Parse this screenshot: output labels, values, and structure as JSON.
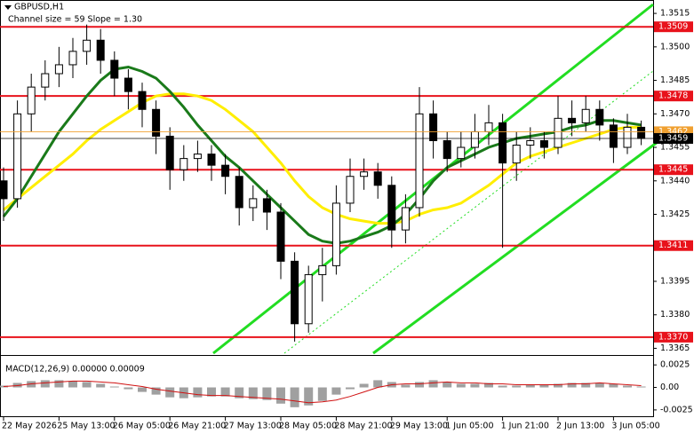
{
  "chart_data": [
    {
      "type": "candlestick",
      "title": "GBPUSD,H1",
      "subtitle": "Channel size = 59 Slope = 1.30",
      "categories": [
        "22 May 2026",
        null,
        null,
        null,
        "25 May 13:00",
        null,
        null,
        null,
        "26 May 05:00",
        null,
        null,
        null,
        "26 May 21:00",
        null,
        null,
        null,
        "27 May 13:00",
        null,
        null,
        null,
        "28 May 05:00",
        null,
        null,
        null,
        "28 May 21:00",
        null,
        null,
        null,
        "29 May 13:00",
        null,
        null,
        null,
        "1 Jun 05:00",
        null,
        null,
        null,
        "1 Jun 21:00",
        null,
        null,
        null,
        "2 Jun 13:00",
        null,
        null,
        null,
        "3 Jun 05:00",
        null,
        null
      ],
      "open": [
        1.344,
        1.3432,
        1.347,
        1.3482,
        1.3488,
        1.3492,
        1.3498,
        1.3503,
        1.3494,
        1.3486,
        1.348,
        1.3472,
        1.346,
        1.3445,
        1.345,
        1.3452,
        1.3447,
        1.3442,
        1.3428,
        1.3432,
        1.3426,
        1.3404,
        1.3376,
        1.3398,
        1.3402,
        1.343,
        1.3442,
        1.3444,
        1.3438,
        1.3418,
        1.3428,
        1.347,
        1.3458,
        1.345,
        1.3455,
        1.3462,
        1.3466,
        1.3448,
        1.3456,
        1.3458,
        1.3455,
        1.3468,
        1.3466,
        1.3472,
        1.3465,
        1.3455,
        1.3464
      ],
      "high": [
        1.3446,
        1.3476,
        1.3488,
        1.3494,
        1.35,
        1.3504,
        1.351,
        1.3508,
        1.3498,
        1.349,
        1.3484,
        1.3476,
        1.3464,
        1.3456,
        1.3458,
        1.3456,
        1.3452,
        1.3446,
        1.3438,
        1.3436,
        1.343,
        1.3408,
        1.3402,
        1.341,
        1.3438,
        1.345,
        1.345,
        1.3448,
        1.3442,
        1.3434,
        1.3482,
        1.3476,
        1.3462,
        1.3462,
        1.347,
        1.3474,
        1.347,
        1.3462,
        1.3464,
        1.3462,
        1.3478,
        1.3476,
        1.3478,
        1.3476,
        1.3468,
        1.347,
        1.3467
      ],
      "low": [
        1.3422,
        1.3428,
        1.3462,
        1.3476,
        1.3482,
        1.3486,
        1.3492,
        1.3488,
        1.3478,
        1.3472,
        1.3464,
        1.3452,
        1.3436,
        1.344,
        1.3444,
        1.344,
        1.3434,
        1.342,
        1.3422,
        1.3418,
        1.3396,
        1.3368,
        1.3372,
        1.3386,
        1.3398,
        1.3426,
        1.3436,
        1.3432,
        1.341,
        1.3412,
        1.3424,
        1.345,
        1.3444,
        1.3446,
        1.345,
        1.3456,
        1.341,
        1.344,
        1.345,
        1.345,
        1.3452,
        1.346,
        1.3462,
        1.3458,
        1.3448,
        1.3452,
        1.3456
      ],
      "close": [
        1.3432,
        1.347,
        1.3482,
        1.3488,
        1.3492,
        1.3498,
        1.3503,
        1.3494,
        1.3486,
        1.348,
        1.3472,
        1.346,
        1.3445,
        1.345,
        1.3452,
        1.3447,
        1.3442,
        1.3428,
        1.3432,
        1.3426,
        1.3404,
        1.3376,
        1.3398,
        1.3402,
        1.343,
        1.3442,
        1.3444,
        1.3438,
        1.3418,
        1.3428,
        1.347,
        1.3458,
        1.345,
        1.3455,
        1.3462,
        1.3466,
        1.3448,
        1.3456,
        1.3458,
        1.3455,
        1.3468,
        1.3466,
        1.3472,
        1.3465,
        1.3455,
        1.3464,
        1.3459
      ],
      "overlays": [
        {
          "color": "#ffee00",
          "values": [
            1.3427,
            1.3432,
            1.3437,
            1.3442,
            1.3447,
            1.3452,
            1.3458,
            1.3463,
            1.3467,
            1.3471,
            1.3475,
            1.3478,
            1.3479,
            1.3479,
            1.3478,
            1.3476,
            1.3472,
            1.3467,
            1.3462,
            1.3455,
            1.3448,
            1.344,
            1.3433,
            1.3428,
            1.3425,
            1.3423,
            1.3422,
            1.3421,
            1.3421,
            1.3422,
            1.3425,
            1.3427,
            1.3428,
            1.343,
            1.3434,
            1.3438,
            1.3443,
            1.3448,
            1.3451,
            1.3453,
            1.3455,
            1.3457,
            1.3459,
            1.3461,
            1.3463,
            1.3464,
            1.3464
          ]
        },
        {
          "color": "#1a7a1a",
          "values": [
            1.3424,
            1.3432,
            1.3442,
            1.3452,
            1.3462,
            1.347,
            1.3478,
            1.3485,
            1.349,
            1.3491,
            1.3489,
            1.3486,
            1.348,
            1.3473,
            1.3465,
            1.3458,
            1.3451,
            1.3446,
            1.344,
            1.3434,
            1.3428,
            1.3422,
            1.3416,
            1.3413,
            1.3412,
            1.3413,
            1.3415,
            1.3417,
            1.342,
            1.3425,
            1.3432,
            1.344,
            1.3446,
            1.3449,
            1.3452,
            1.3455,
            1.3457,
            1.3459,
            1.346,
            1.3461,
            1.3462,
            1.3464,
            1.3465,
            1.3467,
            1.3467,
            1.3466,
            1.3465
          ]
        }
      ],
      "levels": [
        {
          "value": 1.3509,
          "label": "1.3509"
        },
        {
          "value": 1.3478,
          "label": "1.3478"
        },
        {
          "value": 1.3445,
          "label": "1.3445"
        },
        {
          "value": 1.3411,
          "label": "1.3411"
        },
        {
          "value": 1.337,
          "label": "1.3370"
        }
      ],
      "level_color": "#e8121b",
      "price_markers": [
        {
          "value": 1.3462,
          "label": "1.3462",
          "color": "#f0a030"
        },
        {
          "value": 1.3459,
          "label": "1.3459",
          "color": "#000000"
        }
      ],
      "ylim": [
        1.3362,
        1.3521
      ],
      "yticks": [
        1.3515,
        {
          "value": 1.35,
          "label": "1.3500"
        },
        1.3485,
        {
          "value": 1.347,
          "label": "1.3470"
        },
        1.3455,
        {
          "value": 1.344,
          "label": "1.3440"
        },
        1.3425,
        {
          "value": 1.341,
          "label": "1.3410"
        },
        1.3395,
        {
          "value": 1.338,
          "label": "1.3380"
        },
        1.3365
      ]
    },
    {
      "type": "macd",
      "title": "MACD(12,26,9) 0.00000 0.00009",
      "histogram": [
        0.0002,
        0.0005,
        0.0007,
        0.0008,
        0.0008,
        0.0007,
        0.0006,
        0.0004,
        0.0001,
        -0.0002,
        -0.0005,
        -0.0008,
        -0.0011,
        -0.0012,
        -0.0011,
        -0.001,
        -0.001,
        -0.0012,
        -0.0013,
        -0.0014,
        -0.0018,
        -0.0022,
        -0.002,
        -0.0015,
        -0.0008,
        -0.0002,
        0.0004,
        0.0008,
        0.0006,
        0.0003,
        0.0006,
        0.0008,
        0.0006,
        0.0004,
        0.0004,
        0.0005,
        0.0002,
        0.0002,
        0.0003,
        0.0003,
        0.0004,
        0.0005,
        0.0005,
        0.0005,
        0.0004,
        0.0002,
        0.0001
      ],
      "histogram_color": "#a0a0a0",
      "signal": [
        0.0001,
        0.0002,
        0.0004,
        0.0005,
        0.0006,
        0.0007,
        0.0007,
        0.0006,
        0.0005,
        0.0003,
        0.0001,
        -0.0002,
        -0.0004,
        -0.0006,
        -0.0008,
        -0.0009,
        -0.0009,
        -0.001,
        -0.0011,
        -0.0012,
        -0.0013,
        -0.0015,
        -0.0017,
        -0.0016,
        -0.0014,
        -0.001,
        -0.0005,
        0.0,
        0.0003,
        0.0004,
        0.0004,
        0.0005,
        0.0006,
        0.0005,
        0.0005,
        0.0004,
        0.0004,
        0.0003,
        0.0003,
        0.0003,
        0.0003,
        0.0004,
        0.0004,
        0.0005,
        0.0004,
        0.0003,
        0.0002
      ],
      "signal_color": "#d01010",
      "ylim": [
        -0.0033,
        0.0035
      ],
      "yticks": [
        0.0025,
        {
          "value": 0,
          "label": "0.00"
        },
        {
          "value": -0.0025,
          "label": "-0.0025"
        }
      ]
    }
  ]
}
